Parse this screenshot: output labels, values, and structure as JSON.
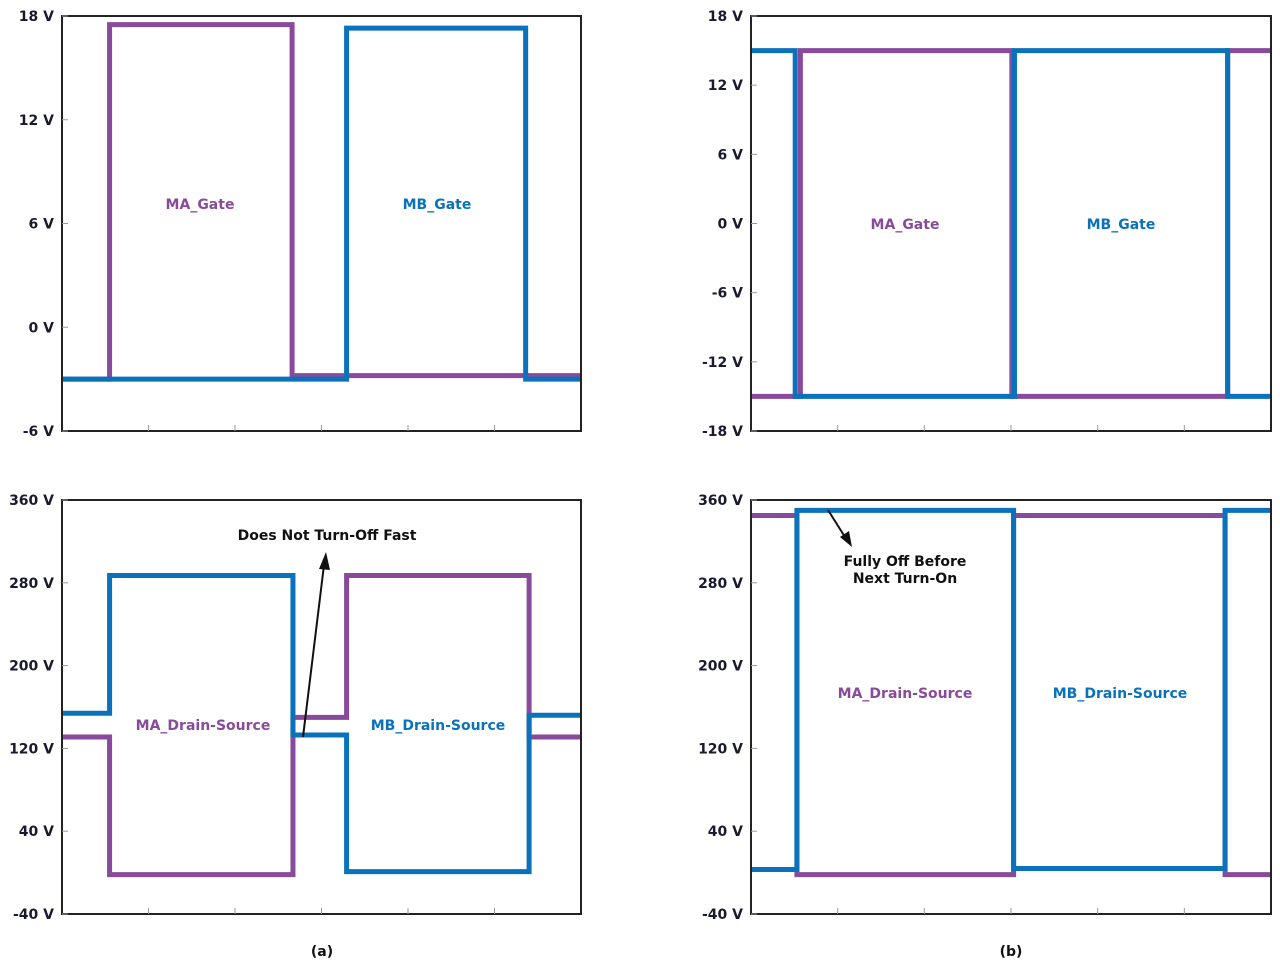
{
  "colors": {
    "MA": "#8a4a9c",
    "MB": "#0a72ba",
    "frame": "#222222"
  },
  "captions": [
    "(a)",
    "(b)"
  ],
  "chart_data": [
    {
      "type": "line",
      "panel": "(a)",
      "title": "",
      "ylim": [
        -6,
        18
      ],
      "yticks": [
        "18 V",
        "12 V",
        "6 V",
        "0 V",
        "-6 V"
      ],
      "ytick_values": [
        18,
        12,
        6,
        0,
        -6
      ],
      "xlim": [
        0,
        6
      ],
      "x_divisions": 6,
      "series": [
        {
          "name": "MA_Gate",
          "color_key": "MA",
          "steps": [
            [
              0,
              -3
            ],
            [
              0.55,
              17.5
            ],
            [
              2.66,
              -2.8
            ],
            [
              6,
              -2.8
            ]
          ]
        },
        {
          "name": "MB_Gate",
          "color_key": "MB",
          "steps": [
            [
              0,
              -3
            ],
            [
              3.29,
              17.3
            ],
            [
              5.36,
              -3
            ],
            [
              6,
              -3
            ]
          ]
        }
      ],
      "annotations": []
    },
    {
      "type": "line",
      "panel": "(b)",
      "title": "",
      "ylim": [
        -18,
        18
      ],
      "yticks": [
        "18 V",
        "12 V",
        "6 V",
        "0 V",
        "-6 V",
        "-12 V",
        "-18 V"
      ],
      "ytick_values": [
        18,
        12,
        6,
        0,
        -6,
        -12,
        -18
      ],
      "xlim": [
        0,
        6
      ],
      "x_divisions": 6,
      "series": [
        {
          "name": "MA_Gate",
          "color_key": "MA",
          "steps": [
            [
              0,
              -15
            ],
            [
              0.57,
              15
            ],
            [
              3.01,
              -15
            ],
            [
              5.5,
              15
            ],
            [
              6,
              15
            ]
          ]
        },
        {
          "name": "MB_Gate",
          "color_key": "MB",
          "steps": [
            [
              0,
              15
            ],
            [
              0.51,
              -15
            ],
            [
              3.04,
              15
            ],
            [
              5.5,
              -15
            ],
            [
              6,
              -15
            ]
          ]
        }
      ],
      "annotations": []
    },
    {
      "type": "line",
      "panel": "(a)",
      "title": "",
      "ylim": [
        -40,
        360
      ],
      "yticks": [
        "360 V",
        "280 V",
        "200 V",
        "120 V",
        "40 V",
        "-40 V"
      ],
      "ytick_values": [
        360,
        280,
        200,
        120,
        40,
        -40
      ],
      "xlim": [
        0,
        6
      ],
      "x_divisions": 6,
      "series": [
        {
          "name": "MA_Drain-Source",
          "color_key": "MA",
          "steps": [
            [
              0,
              131
            ],
            [
              0.55,
              -2
            ],
            [
              2.67,
              150
            ],
            [
              3.29,
              287
            ],
            [
              5.4,
              131
            ],
            [
              6,
              131
            ]
          ]
        },
        {
          "name": "MB_Drain-Source",
          "color_key": "MB",
          "steps": [
            [
              0,
              154
            ],
            [
              0.55,
              287
            ],
            [
              2.67,
              133
            ],
            [
              3.29,
              1
            ],
            [
              5.4,
              152
            ],
            [
              6,
              152
            ]
          ]
        }
      ],
      "annotations": [
        "Does Not Turn-Off Fast"
      ]
    },
    {
      "type": "line",
      "panel": "(b)",
      "title": "",
      "ylim": [
        -40,
        360
      ],
      "yticks": [
        "360 V",
        "280 V",
        "200 V",
        "120 V",
        "40 V",
        "-40 V"
      ],
      "ytick_values": [
        360,
        280,
        200,
        120,
        40,
        -40
      ],
      "xlim": [
        0,
        6
      ],
      "x_divisions": 6,
      "series": [
        {
          "name": "MA_Drain-Source",
          "color_key": "MA",
          "steps": [
            [
              0,
              345
            ],
            [
              0.53,
              -2
            ],
            [
              3.03,
              345
            ],
            [
              5.47,
              -2
            ],
            [
              6,
              -2
            ]
          ]
        },
        {
          "name": "MB_Drain-Source",
          "color_key": "MB",
          "steps": [
            [
              0,
              3
            ],
            [
              0.53,
              350
            ],
            [
              3.03,
              4
            ],
            [
              5.47,
              350
            ],
            [
              6,
              350
            ]
          ]
        }
      ],
      "annotations": [
        "Fully Off Before",
        "Next Turn-On"
      ]
    }
  ]
}
